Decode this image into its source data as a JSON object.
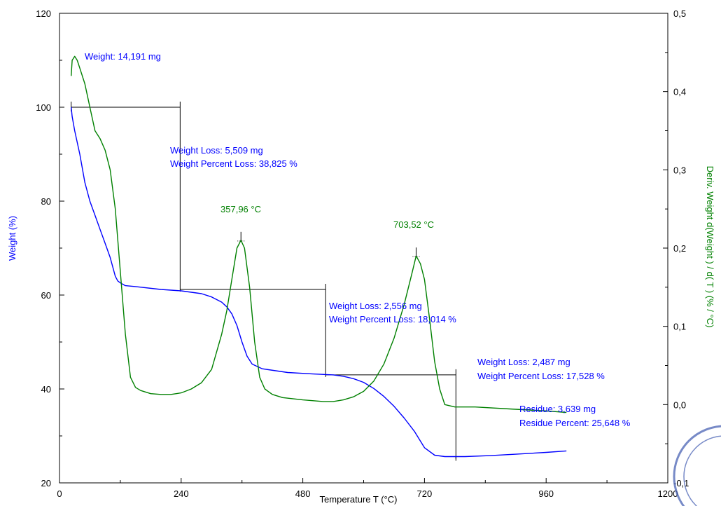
{
  "chart_data": {
    "type": "line",
    "title": "",
    "xlabel": "Temperature  T (°C)",
    "ylabel": "Weight  (%)",
    "y2label": "Deriv. Weight d(Weight ) / d( T )  (% / °C)",
    "xlim": [
      0,
      1200
    ],
    "ylim": [
      20,
      120
    ],
    "y2lim": [
      -0.1,
      0.5
    ],
    "grid": false,
    "x_ticks": [
      "0",
      "240",
      "480",
      "720",
      "960",
      "1200"
    ],
    "y_ticks": [
      "20",
      "40",
      "60",
      "80",
      "100",
      "120"
    ],
    "y2_ticks": [
      "-0,1",
      "0,0",
      "0,1",
      "0,2",
      "0,3",
      "0,4",
      "0,5"
    ],
    "colors": {
      "weight": "#0000ff",
      "deriv": "#008000",
      "steps": "#000000"
    },
    "series": [
      {
        "key": "weight",
        "axis": "left",
        "x": [
          23,
          25,
          30,
          40,
          50,
          60,
          70,
          80,
          90,
          100,
          110,
          115,
          120,
          130,
          150,
          200,
          240,
          280,
          300,
          320,
          330,
          340,
          350,
          360,
          370,
          380,
          400,
          450,
          500,
          540,
          560,
          580,
          600,
          620,
          640,
          660,
          680,
          700,
          720,
          740,
          760,
          800,
          850,
          900,
          960,
          1000
        ],
        "values": [
          100,
          98,
          95,
          90,
          84,
          80,
          77,
          74,
          71,
          68,
          64,
          63,
          62.6,
          62,
          61.8,
          61.2,
          60.9,
          60.3,
          59.6,
          58.5,
          57.5,
          56,
          53.5,
          50,
          47,
          45.3,
          44.3,
          43.5,
          43.2,
          43.0,
          42.7,
          42.2,
          41.4,
          40.1,
          38.4,
          36.3,
          33.8,
          31.0,
          27.5,
          25.9,
          25.6,
          25.6,
          25.8,
          26.1,
          26.5,
          26.8
        ]
      },
      {
        "key": "deriv",
        "axis": "right",
        "x": [
          23,
          25,
          30,
          35,
          40,
          50,
          60,
          70,
          80,
          90,
          100,
          110,
          120,
          130,
          140,
          150,
          160,
          180,
          200,
          220,
          240,
          260,
          280,
          300,
          320,
          330,
          340,
          350,
          357.96,
          365,
          375,
          385,
          395,
          405,
          420,
          440,
          480,
          520,
          540,
          560,
          580,
          600,
          620,
          640,
          660,
          680,
          695,
          703.52,
          712,
          720,
          730,
          740,
          750,
          760,
          780,
          820,
          900,
          960,
          1000
        ],
        "values": [
          0.42,
          0.44,
          0.445,
          0.44,
          0.43,
          0.41,
          0.38,
          0.35,
          0.34,
          0.325,
          0.3,
          0.25,
          0.17,
          0.09,
          0.035,
          0.022,
          0.018,
          0.014,
          0.013,
          0.013,
          0.015,
          0.02,
          0.028,
          0.045,
          0.09,
          0.12,
          0.16,
          0.2,
          0.21,
          0.2,
          0.15,
          0.08,
          0.035,
          0.02,
          0.013,
          0.009,
          0.006,
          0.004,
          0.004,
          0.006,
          0.01,
          0.017,
          0.03,
          0.052,
          0.085,
          0.128,
          0.167,
          0.19,
          0.18,
          0.16,
          0.11,
          0.055,
          0.02,
          0.0,
          -0.003,
          -0.003,
          -0.006,
          -0.008,
          -0.01
        ]
      }
    ],
    "annotations": {
      "initial_weight": "Weight: 14,191 mg",
      "step1_loss": "Weight Loss: 5,509 mg",
      "step1_percent": "Weight Percent Loss: 38,825 %",
      "peak1": "357,96 °C",
      "step2_loss": "Weight Loss: 2,556 mg",
      "step2_percent": "Weight Percent Loss: 18,014 %",
      "peak2": "703,52 °C",
      "step3_loss": "Weight Loss: 2,487 mg",
      "step3_percent": "Weight Percent Loss: 17,528 %",
      "residue": "Residue: 3,639 mg",
      "residue_percent": "Residue Percent: 25,648 %"
    },
    "steps": [
      {
        "x_start": 23,
        "y_start": 100,
        "x_end": 238,
        "y_end": 61.2
      },
      {
        "x_start": 238,
        "y_start": 61.2,
        "x_end": 525,
        "y_end": 43.0
      },
      {
        "x_start": 525,
        "y_start": 43.0,
        "x_end": 782,
        "y_end": 25.6
      }
    ]
  }
}
